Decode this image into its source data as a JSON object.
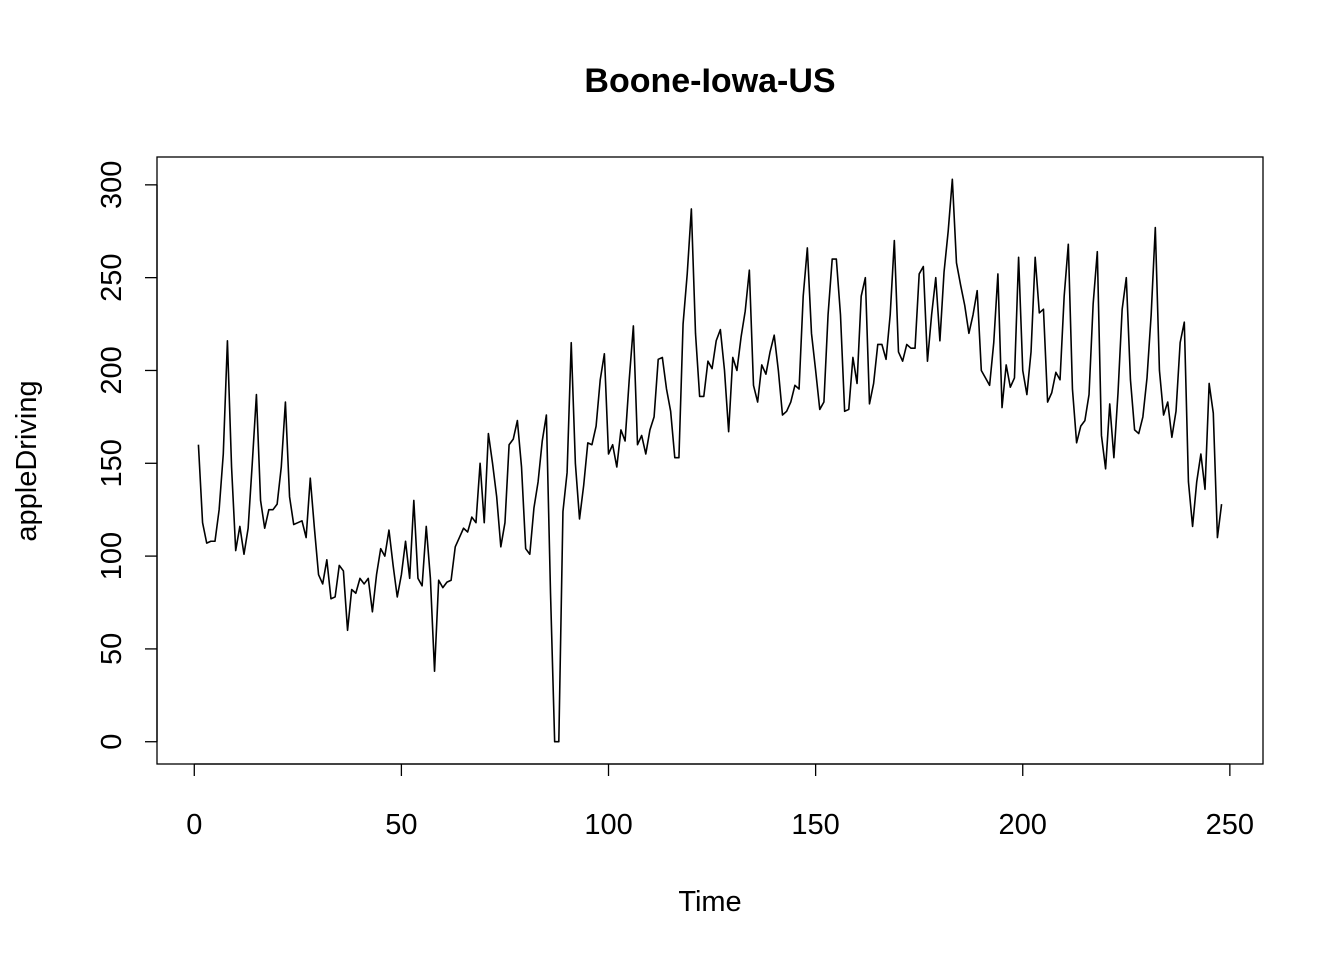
{
  "chart_data": {
    "type": "line",
    "title": "Boone-Iowa-US",
    "xlabel": "Time",
    "ylabel": "appleDriving",
    "xlim": [
      -9,
      258
    ],
    "ylim": [
      -12,
      315
    ],
    "x_ticks": [
      0,
      50,
      100,
      150,
      200,
      250
    ],
    "y_ticks": [
      0,
      50,
      100,
      150,
      200,
      250,
      300
    ],
    "grid": false,
    "legend": "none",
    "series": [
      {
        "color": "#000000",
        "x": [
          1,
          2,
          3,
          4,
          5,
          6,
          7,
          8,
          9,
          10,
          11,
          12,
          13,
          14,
          15,
          16,
          17,
          18,
          19,
          20,
          21,
          22,
          23,
          24,
          25,
          26,
          27,
          28,
          29,
          30,
          31,
          32,
          33,
          34,
          35,
          36,
          37,
          38,
          39,
          40,
          41,
          42,
          43,
          44,
          45,
          46,
          47,
          48,
          49,
          50,
          51,
          52,
          53,
          54,
          55,
          56,
          57,
          58,
          59,
          60,
          61,
          62,
          63,
          64,
          65,
          66,
          67,
          68,
          69,
          70,
          71,
          72,
          73,
          74,
          75,
          76,
          77,
          78,
          79,
          80,
          81,
          82,
          83,
          84,
          85,
          86,
          87,
          88,
          89,
          90,
          91,
          92,
          93,
          94,
          95,
          96,
          97,
          98,
          99,
          100,
          101,
          102,
          103,
          104,
          105,
          106,
          107,
          108,
          109,
          110,
          111,
          112,
          113,
          114,
          115,
          116,
          117,
          118,
          119,
          120,
          121,
          122,
          123,
          124,
          125,
          126,
          127,
          128,
          129,
          130,
          131,
          132,
          133,
          134,
          135,
          136,
          137,
          138,
          139,
          140,
          141,
          142,
          143,
          144,
          145,
          146,
          147,
          148,
          149,
          150,
          151,
          152,
          153,
          154,
          155,
          156,
          157,
          158,
          159,
          160,
          161,
          162,
          163,
          164,
          165,
          166,
          167,
          168,
          169,
          170,
          171,
          172,
          173,
          174,
          175,
          176,
          177,
          178,
          179,
          180,
          181,
          182,
          183,
          184,
          185,
          186,
          187,
          188,
          189,
          190,
          191,
          192,
          193,
          194,
          195,
          196,
          197,
          198,
          199,
          200,
          201,
          202,
          203,
          204,
          205,
          206,
          207,
          208,
          209,
          210,
          211,
          212,
          213,
          214,
          215,
          216,
          217,
          218,
          219,
          220,
          221,
          222,
          223,
          224,
          225,
          226,
          227,
          228,
          229,
          230,
          231,
          232,
          233,
          234,
          235,
          236,
          237,
          238,
          239,
          240,
          241,
          242,
          243,
          244,
          245,
          246,
          247,
          248
        ],
        "values": [
          160,
          118,
          107,
          108,
          108,
          125,
          155,
          216,
          148,
          103,
          116,
          101,
          115,
          150,
          187,
          130,
          115,
          125,
          125,
          128,
          148,
          183,
          132,
          117,
          118,
          119,
          110,
          142,
          115,
          90,
          85,
          98,
          77,
          78,
          95,
          92,
          60,
          82,
          80,
          88,
          85,
          88,
          70,
          90,
          104,
          100,
          114,
          95,
          78,
          90,
          108,
          88,
          130,
          88,
          84,
          116,
          88,
          38,
          87,
          83,
          86,
          87,
          105,
          110,
          115,
          113,
          121,
          118,
          150,
          118,
          166,
          150,
          132,
          105,
          118,
          160,
          163,
          173,
          148,
          104,
          101,
          126,
          140,
          162,
          176,
          80,
          0,
          0,
          124,
          145,
          215,
          150,
          120,
          138,
          161,
          160,
          170,
          195,
          209,
          155,
          160,
          148,
          168,
          162,
          195,
          224,
          160,
          165,
          155,
          168,
          175,
          206,
          207,
          190,
          178,
          153,
          153,
          225,
          252,
          287,
          220,
          186,
          186,
          205,
          201,
          216,
          222,
          200,
          167,
          207,
          200,
          218,
          232,
          254,
          192,
          183,
          203,
          198,
          210,
          219,
          200,
          176,
          178,
          183,
          192,
          190,
          240,
          266,
          220,
          200,
          179,
          183,
          230,
          260,
          260,
          230,
          178,
          179,
          207,
          193,
          240,
          250,
          182,
          193,
          214,
          214,
          206,
          230,
          270,
          210,
          205,
          214,
          212,
          212,
          252,
          256,
          205,
          230,
          250,
          216,
          253,
          275,
          303,
          258,
          246,
          235,
          220,
          230,
          243,
          200,
          196,
          192,
          215,
          252,
          180,
          203,
          191,
          196,
          261,
          200,
          187,
          210,
          261,
          231,
          233,
          183,
          188,
          199,
          195,
          240,
          268,
          190,
          161,
          170,
          173,
          187,
          236,
          264,
          165,
          147,
          182,
          153,
          188,
          233,
          250,
          195,
          168,
          166,
          175,
          196,
          230,
          277,
          200,
          176,
          183,
          164,
          178,
          215,
          226,
          140,
          116,
          140,
          155,
          136,
          193,
          177,
          110,
          128
        ]
      }
    ]
  }
}
